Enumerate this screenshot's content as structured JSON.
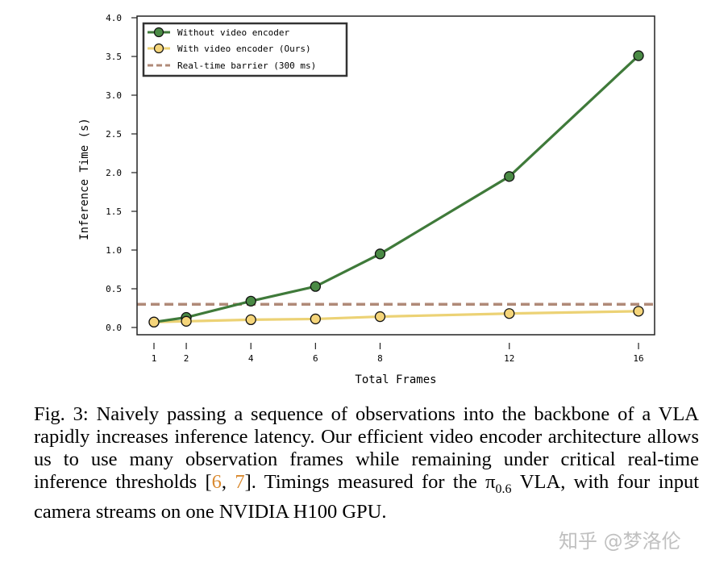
{
  "chart_data": {
    "type": "line",
    "title": "",
    "xlabel": "Total Frames",
    "ylabel": "Inference Time (s)",
    "x": [
      1,
      2,
      4,
      6,
      8,
      12,
      16
    ],
    "x_ticks": [
      "1",
      "2",
      "4",
      "6",
      "8",
      "12",
      "16"
    ],
    "y_ticks": [
      "0.0",
      "0.5",
      "1.0",
      "1.5",
      "2.0",
      "2.5",
      "3.0",
      "3.5",
      "4.0"
    ],
    "xlim": [
      0.5,
      16.5
    ],
    "ylim": [
      -0.1,
      4.0
    ],
    "grid": false,
    "legend_position": "top-left",
    "series": [
      {
        "name": "Without video encoder",
        "values": [
          0.07,
          0.13,
          0.34,
          0.53,
          0.95,
          1.95,
          3.51
        ],
        "color": "#3f7a3a",
        "marker_color": "#4a8a45"
      },
      {
        "name": "With video encoder (Ours)",
        "values": [
          0.07,
          0.08,
          0.1,
          0.11,
          0.14,
          0.18,
          0.21
        ],
        "color": "#ecd275",
        "marker_color": "#f5d57a"
      }
    ],
    "reference_lines": [
      {
        "name": "Real-time barrier (300 ms)",
        "y": 0.3,
        "style": "dashed",
        "color": "#b08a78"
      }
    ]
  },
  "caption": {
    "prefix": "Fig. 3: Naively passing a sequence of observations into the backbone of a VLA rapidly increases inference latency. Our efficient video encoder architecture allows us to use many observation frames while remaining under critical real-time inference thresholds [",
    "ref1": "6",
    "sep": ", ",
    "ref2": "7",
    "middle": "]. Timings measured for the π",
    "subscript": "0.6",
    "suffix": " VLA, with four input camera streams on one NVIDIA H100 GPU."
  },
  "watermark": "知乎 @梦洛伦"
}
